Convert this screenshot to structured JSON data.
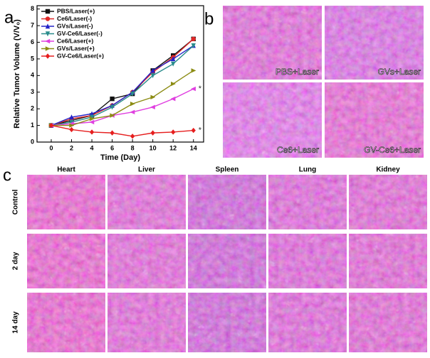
{
  "chart_data": {
    "type": "line",
    "y_label": "Relative Tumor Volume (V/V₀)",
    "x_label": "Time (Day)",
    "x": [
      0,
      2,
      4,
      6,
      8,
      10,
      12,
      14
    ],
    "xlim": [
      -1.4,
      15
    ],
    "xticks": [
      0,
      2,
      4,
      6,
      8,
      10,
      12,
      14
    ],
    "ylim": [
      0,
      8.2
    ],
    "yticks": [
      0,
      1,
      2,
      3,
      4,
      5,
      6,
      7,
      8
    ],
    "grid": false,
    "legend": "upper left",
    "series": [
      {
        "name": "PBS/Laser(+)",
        "color": "#111111",
        "marker": "square",
        "values": [
          1,
          1.3,
          1.6,
          2.6,
          2.9,
          4.3,
          5.2,
          6.2
        ]
      },
      {
        "name": "Ce6/Laser(-)",
        "color": "#e02828",
        "marker": "circle",
        "values": [
          1,
          1.4,
          1.6,
          2.2,
          3.0,
          4.2,
          5.1,
          6.2
        ]
      },
      {
        "name": "GVs/Laser(-)",
        "color": "#2323c8",
        "marker": "triangle-up",
        "values": [
          1,
          1.5,
          1.7,
          2.2,
          3.0,
          4.3,
          5.0,
          5.8
        ]
      },
      {
        "name": "GV-Ce6/Laser(-)",
        "color": "#2a8c8c",
        "marker": "triangle-down",
        "values": [
          1,
          1.2,
          1.5,
          2.1,
          2.9,
          4.0,
          4.7,
          5.8
        ]
      },
      {
        "name": "Ce6/Laser(+)",
        "color": "#e040e0",
        "marker": "triangle-left",
        "values": [
          1,
          1.1,
          1.2,
          1.6,
          1.8,
          2.1,
          2.6,
          3.2
        ],
        "annotation": "*"
      },
      {
        "name": "GVs/Laser(+)",
        "color": "#8c8c14",
        "marker": "triangle-right",
        "values": [
          1,
          1.0,
          1.4,
          1.6,
          2.3,
          2.7,
          3.5,
          4.3
        ]
      },
      {
        "name": "GV-Ce6/Laser(+)",
        "color": "#e61e1e",
        "marker": "diamond",
        "values": [
          1,
          0.75,
          0.6,
          0.55,
          0.35,
          0.55,
          0.6,
          0.7
        ],
        "annotation": "*"
      }
    ]
  },
  "panels": {
    "a": "a",
    "b": "b",
    "c": "c"
  },
  "histology_b": {
    "labels": [
      "PBS+Laser",
      "GVs+Laser",
      "Ce6+Laser",
      "GV-Ce6+Laser"
    ]
  },
  "histology_c": {
    "columns": [
      "Heart",
      "Liver",
      "Spleen",
      "Lung",
      "Kidney"
    ],
    "rows": [
      "Control",
      "2 day",
      "14 day"
    ]
  }
}
